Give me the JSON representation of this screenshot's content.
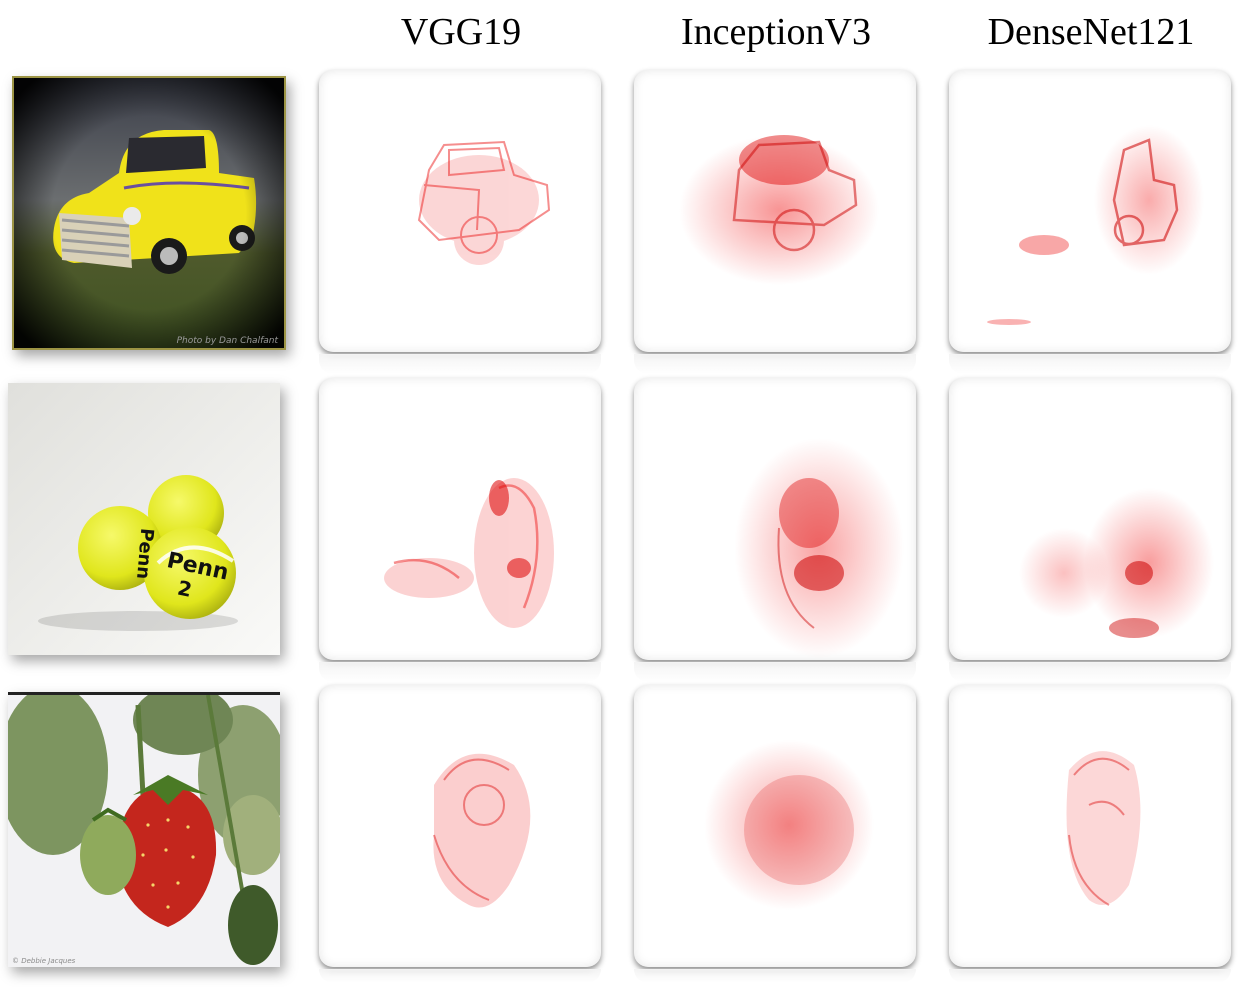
{
  "columns": [
    {
      "label": "VGG19"
    },
    {
      "label": "InceptionV3"
    },
    {
      "label": "DenseNet121"
    }
  ],
  "rows": [
    {
      "subject": "truck",
      "photo_credit": "Photo by Dan Chalfant"
    },
    {
      "subject": "tennis-balls",
      "ball_brand": "Penn",
      "ball_number": "2"
    },
    {
      "subject": "strawberry",
      "photo_credit": "© Debbie Jacques"
    }
  ],
  "heatmap_color": "#e00000"
}
